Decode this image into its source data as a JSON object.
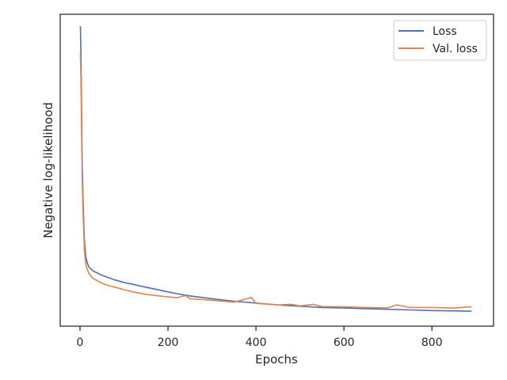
{
  "chart_data": {
    "type": "line",
    "title": "",
    "xlabel": "Epochs",
    "ylabel": "Negative log-likelihood",
    "xlim": [
      -45,
      940
    ],
    "ylim": [
      0.0,
      1.0
    ],
    "xticks": [
      0,
      200,
      400,
      600,
      800
    ],
    "y_tick_labels_shown": false,
    "grid": false,
    "legend": "top-right",
    "series": [
      {
        "name": "Loss",
        "color": "#4c72b0",
        "x": [
          1,
          2,
          3,
          4,
          5,
          7,
          10,
          13,
          16,
          20,
          25,
          30,
          40,
          50,
          60,
          80,
          100,
          120,
          150,
          180,
          200,
          220,
          250,
          300,
          350,
          400,
          450,
          500,
          550,
          600,
          650,
          700,
          750,
          800,
          850,
          890
        ],
        "y": [
          0.962,
          0.88,
          0.76,
          0.64,
          0.52,
          0.4,
          0.275,
          0.225,
          0.205,
          0.19,
          0.183,
          0.177,
          0.17,
          0.163,
          0.158,
          0.148,
          0.14,
          0.134,
          0.125,
          0.116,
          0.11,
          0.104,
          0.097,
          0.088,
          0.08,
          0.074,
          0.068,
          0.064,
          0.06,
          0.058,
          0.056,
          0.054,
          0.052,
          0.05,
          0.049,
          0.048
        ]
      },
      {
        "name": "Val. loss",
        "color": "#dd8452",
        "x": [
          1,
          2,
          3,
          4,
          5,
          7,
          10,
          13,
          16,
          20,
          25,
          30,
          40,
          50,
          60,
          80,
          100,
          120,
          150,
          180,
          200,
          220,
          240,
          250,
          300,
          350,
          390,
          400,
          450,
          480,
          500,
          530,
          550,
          600,
          650,
          700,
          720,
          750,
          800,
          850,
          890
        ],
        "y": [
          0.876,
          0.8,
          0.69,
          0.58,
          0.47,
          0.36,
          0.245,
          0.2,
          0.184,
          0.17,
          0.16,
          0.153,
          0.145,
          0.138,
          0.132,
          0.125,
          0.117,
          0.11,
          0.102,
          0.097,
          0.094,
          0.091,
          0.098,
          0.088,
          0.083,
          0.077,
          0.092,
          0.073,
          0.068,
          0.07,
          0.065,
          0.07,
          0.063,
          0.062,
          0.06,
          0.059,
          0.068,
          0.06,
          0.06,
          0.058,
          0.062
        ]
      }
    ]
  }
}
